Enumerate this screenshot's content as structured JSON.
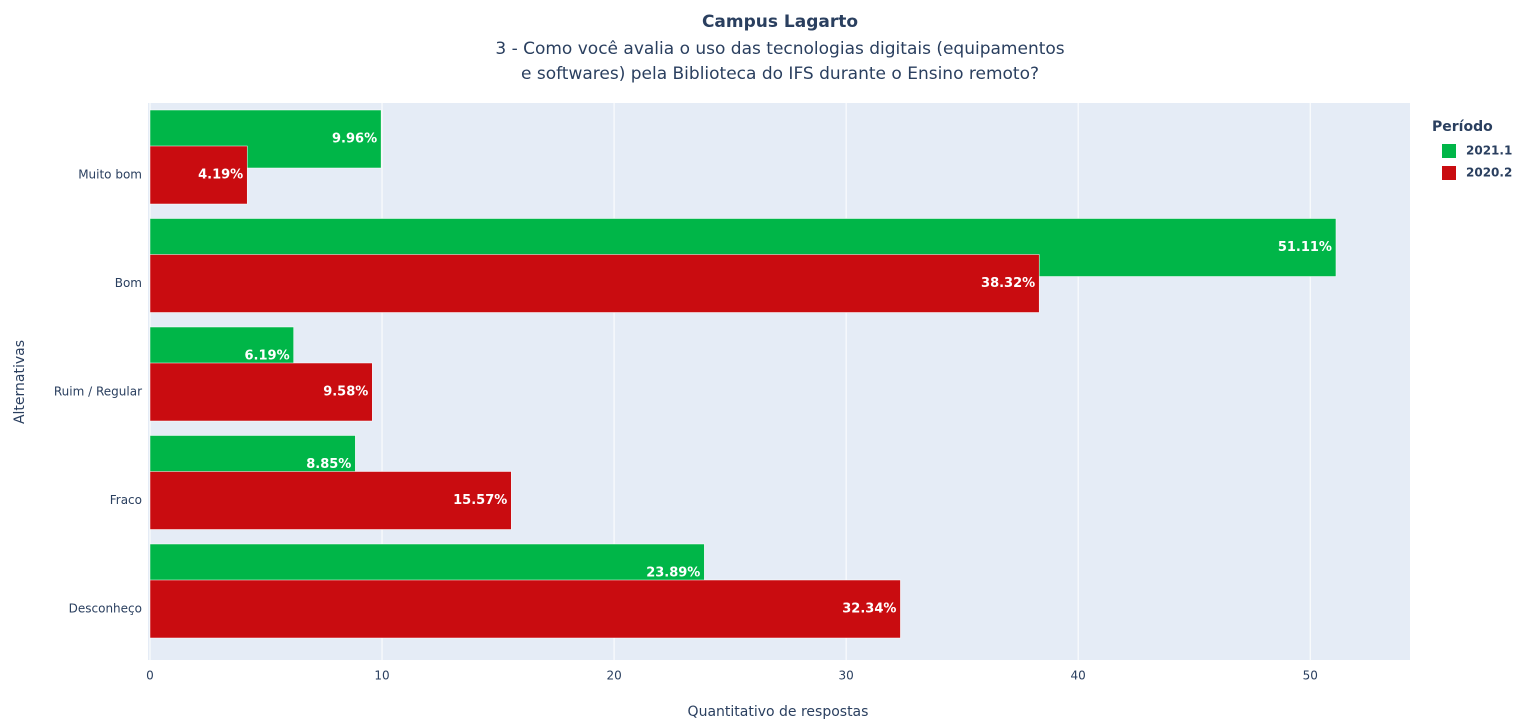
{
  "chart_data": {
    "type": "bar",
    "orientation": "horizontal",
    "title": "Campus Lagarto",
    "subtitle": [
      "3 - Como você avalia o uso das tecnologias digitais (equipamentos",
      "e softwares) pela Biblioteca do IFS durante o Ensino remoto?"
    ],
    "xlabel": "Quantitativo de respostas",
    "ylabel": "Alternativas",
    "legend_title": "Período",
    "legend_position": "right",
    "categories": [
      "Muito bom",
      "Bom",
      "Ruim / Regular",
      "Fraco",
      "Desconheço"
    ],
    "series": [
      {
        "name": "2021.1",
        "color": "#00b648",
        "values": [
          9.96,
          51.11,
          6.19,
          8.85,
          23.89
        ],
        "value_labels": [
          "9.96%",
          "51.11%",
          "6.19%",
          "8.85%",
          "23.89%"
        ]
      },
      {
        "name": "2020.2",
        "color": "#c90c10",
        "values": [
          4.19,
          38.32,
          9.58,
          15.57,
          32.34
        ],
        "value_labels": [
          "4.19%",
          "38.32%",
          "9.58%",
          "15.57%",
          "32.34%"
        ]
      }
    ],
    "xlim": [
      0,
      54.3
    ],
    "xticks": [
      0,
      10,
      20,
      30,
      40,
      50
    ],
    "grid": true
  }
}
